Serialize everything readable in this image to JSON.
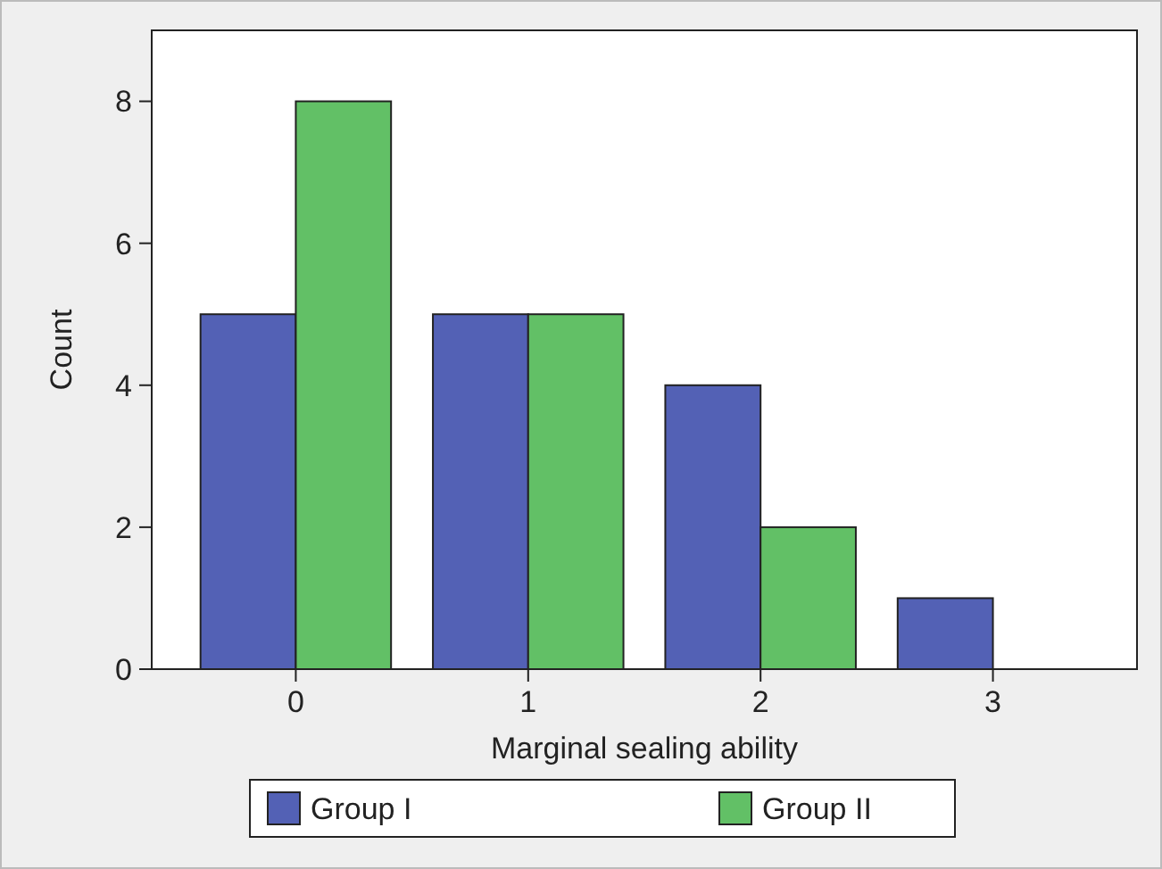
{
  "chart_data": {
    "type": "bar",
    "xlabel": "Marginal sealing ability",
    "ylabel": "Count",
    "categories": [
      "0",
      "1",
      "2",
      "3"
    ],
    "series": [
      {
        "name": "Group I",
        "color": "#5361b5",
        "values": [
          5,
          5,
          4,
          1
        ]
      },
      {
        "name": "Group II",
        "color": "#62c066",
        "values": [
          8,
          5,
          2,
          0
        ]
      }
    ],
    "ylim": [
      0,
      9
    ],
    "yticks": [
      0,
      2,
      4,
      6,
      8
    ],
    "grid": false,
    "legend": "bottom"
  }
}
